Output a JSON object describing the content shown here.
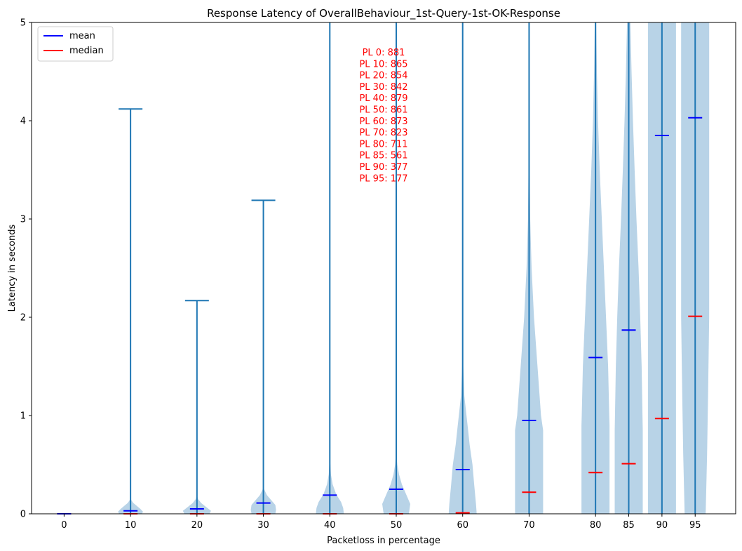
{
  "chart_data": {
    "type": "violin",
    "title": "Response Latency of OverallBehaviour_1st-Query-1st-OK-Response",
    "xlabel": "Packetloss in percentage",
    "ylabel": "Latency in seconds",
    "ylim": [
      0,
      5
    ],
    "yticks": [
      "0",
      "1",
      "2",
      "3",
      "4",
      "5"
    ],
    "grid": false,
    "legend": {
      "placement": "top-left",
      "entries": [
        {
          "name": "mean",
          "color": "#0000ff"
        },
        {
          "name": "median",
          "color": "#ff0000"
        }
      ]
    },
    "colors": {
      "violin_body": "#b8d3e7",
      "stem": "#1f77b4",
      "mean": "#0000ff",
      "median": "#ff0000",
      "annotation": "#ff0000"
    },
    "annotation_lines": [
      "PL 0: 881",
      "PL 10: 865",
      "PL 20: 854",
      "PL 30: 842",
      "PL 40: 879",
      "PL 50: 861",
      "PL 60: 873",
      "PL 70: 823",
      "PL 80: 711",
      "PL 85: 561",
      "PL 90: 377",
      "PL 95: 177"
    ],
    "series": [
      {
        "category": "0",
        "x": 0,
        "mean": 0.0,
        "median": 0.0,
        "min": 0.0,
        "max": 0.0,
        "max_capped": false,
        "density": [
          [
            0,
            0.0
          ],
          [
            0.02,
            0.0
          ]
        ]
      },
      {
        "category": "10",
        "x": 10,
        "mean": 0.03,
        "median": 0.0,
        "min": 0.0,
        "max": 4.12,
        "max_capped": false,
        "density": [
          [
            0,
            0.8
          ],
          [
            0.02,
            0.9
          ],
          [
            0.05,
            0.7
          ],
          [
            0.08,
            0.45
          ],
          [
            0.11,
            0.2
          ],
          [
            0.15,
            0.0
          ]
        ]
      },
      {
        "category": "20",
        "x": 20,
        "mean": 0.05,
        "median": 0.0,
        "min": 0.0,
        "max": 2.17,
        "max_capped": false,
        "density": [
          [
            0,
            0.9
          ],
          [
            0.03,
            1.0
          ],
          [
            0.07,
            0.65
          ],
          [
            0.11,
            0.3
          ],
          [
            0.15,
            0.08
          ],
          [
            0.19,
            0.0
          ]
        ]
      },
      {
        "category": "30",
        "x": 30,
        "mean": 0.11,
        "median": 0.0,
        "min": 0.0,
        "max": 3.19,
        "max_capped": false,
        "density": [
          [
            0,
            0.85
          ],
          [
            0.04,
            0.9
          ],
          [
            0.09,
            0.85
          ],
          [
            0.14,
            0.55
          ],
          [
            0.19,
            0.25
          ],
          [
            0.25,
            0.05
          ],
          [
            0.3,
            0.0
          ]
        ]
      },
      {
        "category": "40",
        "x": 40,
        "mean": 0.19,
        "median": 0.0,
        "min": 0.0,
        "max": 5.0,
        "max_capped": true,
        "density": [
          [
            0,
            1.0
          ],
          [
            0.06,
            0.95
          ],
          [
            0.12,
            0.8
          ],
          [
            0.2,
            0.45
          ],
          [
            0.3,
            0.2
          ],
          [
            0.4,
            0.08
          ],
          [
            0.55,
            0.02
          ],
          [
            0.7,
            0.0
          ]
        ]
      },
      {
        "category": "50",
        "x": 50,
        "mean": 0.25,
        "median": 0.0,
        "min": 0.0,
        "max": 5.0,
        "max_capped": true,
        "density": [
          [
            0,
            0.9
          ],
          [
            0.05,
            0.95
          ],
          [
            0.1,
            1.0
          ],
          [
            0.2,
            0.7
          ],
          [
            0.3,
            0.4
          ],
          [
            0.4,
            0.2
          ],
          [
            0.5,
            0.08
          ],
          [
            0.6,
            0.03
          ],
          [
            0.7,
            0.0
          ]
        ]
      },
      {
        "category": "60",
        "x": 60,
        "mean": 0.45,
        "median": 0.01,
        "min": 0.0,
        "max": 5.0,
        "max_capped": true,
        "density": [
          [
            0,
            1.0
          ],
          [
            0.1,
            0.95
          ],
          [
            0.3,
            0.82
          ],
          [
            0.5,
            0.7
          ],
          [
            0.7,
            0.5
          ],
          [
            0.9,
            0.35
          ],
          [
            1.2,
            0.12
          ],
          [
            1.5,
            0.04
          ],
          [
            1.9,
            0.0
          ]
        ]
      },
      {
        "category": "70",
        "x": 70,
        "mean": 0.95,
        "median": 0.22,
        "min": 0.0,
        "max": 5.0,
        "max_capped": true,
        "density": [
          [
            0,
            1.0
          ],
          [
            0.4,
            1.0
          ],
          [
            0.85,
            1.0
          ],
          [
            1.0,
            0.85
          ],
          [
            1.5,
            0.6
          ],
          [
            2.0,
            0.35
          ],
          [
            2.5,
            0.18
          ],
          [
            3.0,
            0.08
          ],
          [
            3.5,
            0.04
          ],
          [
            4.2,
            0.0
          ]
        ]
      },
      {
        "category": "80",
        "x": 80,
        "mean": 1.59,
        "median": 0.42,
        "min": 0.0,
        "max": 5.0,
        "max_capped": true,
        "density": [
          [
            0,
            1.0
          ],
          [
            0.9,
            1.0
          ],
          [
            1.0,
            0.98
          ],
          [
            1.5,
            0.9
          ],
          [
            2.0,
            0.75
          ],
          [
            2.5,
            0.6
          ],
          [
            3.0,
            0.45
          ],
          [
            3.5,
            0.3
          ],
          [
            4.0,
            0.18
          ],
          [
            4.5,
            0.1
          ],
          [
            5.0,
            0.05
          ]
        ]
      },
      {
        "category": "85",
        "x": 85,
        "mean": 1.87,
        "median": 0.51,
        "min": 0.0,
        "max": 5.0,
        "max_capped": true,
        "density": [
          [
            0,
            1.0
          ],
          [
            0.85,
            1.0
          ],
          [
            1.0,
            0.98
          ],
          [
            1.5,
            0.92
          ],
          [
            2.0,
            0.82
          ],
          [
            2.5,
            0.7
          ],
          [
            3.0,
            0.55
          ],
          [
            3.5,
            0.42
          ],
          [
            4.0,
            0.3
          ],
          [
            4.5,
            0.2
          ],
          [
            5.0,
            0.12
          ]
        ]
      },
      {
        "category": "90",
        "x": 90,
        "mean": 3.85,
        "median": 0.97,
        "min": 0.0,
        "max": 5.0,
        "max_capped": true,
        "density": [
          [
            0,
            1.0
          ],
          [
            1.0,
            1.0
          ],
          [
            2.0,
            1.0
          ],
          [
            3.0,
            1.0
          ],
          [
            4.0,
            1.0
          ],
          [
            5.0,
            1.0
          ]
        ]
      },
      {
        "category": "95",
        "x": 95,
        "mean": 4.03,
        "median": 2.01,
        "min": 0.0,
        "max": 5.0,
        "max_capped": true,
        "density": [
          [
            0,
            0.75
          ],
          [
            0.6,
            0.85
          ],
          [
            1.2,
            0.92
          ],
          [
            2.0,
            1.0
          ],
          [
            3.0,
            1.0
          ],
          [
            4.0,
            1.0
          ],
          [
            5.0,
            1.0
          ]
        ]
      }
    ]
  }
}
